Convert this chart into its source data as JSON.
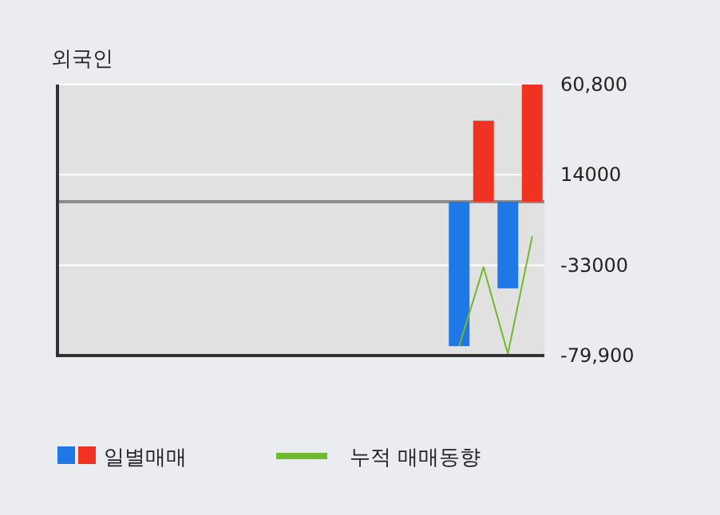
{
  "chart_data": {
    "type": "bar",
    "title": "외국인",
    "categories": [
      null,
      null,
      null,
      null,
      null,
      null,
      null,
      null,
      null,
      null,
      null,
      null,
      null,
      null,
      null,
      null,
      null,
      null,
      null,
      null
    ],
    "series": [
      {
        "name": "일별매매",
        "colors": [
          null,
          null,
          null,
          null,
          null,
          null,
          null,
          null,
          null,
          null,
          null,
          null,
          null,
          null,
          null,
          null,
          "#1e78e6",
          "#f03223",
          "#1e78e6",
          "#f03223"
        ],
        "values": [
          null,
          null,
          null,
          null,
          null,
          null,
          null,
          null,
          null,
          null,
          null,
          null,
          null,
          null,
          null,
          null,
          -75000,
          42000,
          -45000,
          60800
        ]
      },
      {
        "name": "누적 매매동향",
        "type": "line",
        "color": "#6fba2c",
        "values": [
          null,
          null,
          null,
          null,
          null,
          null,
          null,
          null,
          null,
          null,
          null,
          null,
          null,
          null,
          null,
          null,
          -75000,
          -34000,
          -79000,
          -18000
        ]
      }
    ],
    "ylim": [
      -79900,
      60800
    ],
    "yticks": [
      {
        "value": 60800,
        "label": "60,800"
      },
      14000,
      -33000,
      {
        "value": -79900,
        "label": "-79,900"
      }
    ],
    "grid": "y",
    "ref_lines": [
      {
        "axis": "y",
        "value": 0,
        "color": "#8c8c8c"
      }
    ],
    "legend": "bottom"
  }
}
